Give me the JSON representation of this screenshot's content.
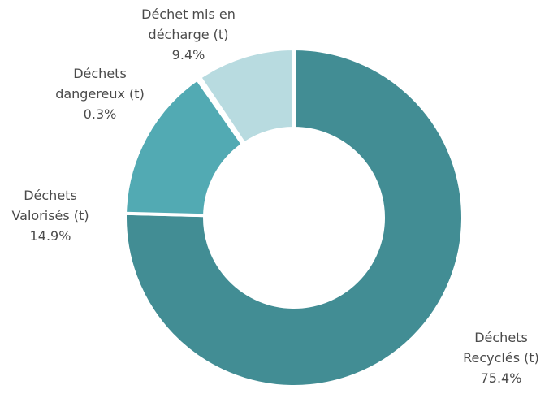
{
  "chart_data": {
    "type": "donut",
    "categories": [
      "Déchets Recyclés (t)",
      "Déchets Valorisés (t)",
      "Déchets dangereux (t)",
      "Déchet mis en décharge (t)"
    ],
    "values": [
      75.4,
      14.9,
      0.3,
      9.4
    ],
    "value_labels": [
      "75.4%",
      "14.9%",
      "0.3%",
      "9.4%"
    ],
    "colors": [
      "#428d94",
      "#52aab3",
      "#6cbac1",
      "#b8dbe0"
    ]
  }
}
